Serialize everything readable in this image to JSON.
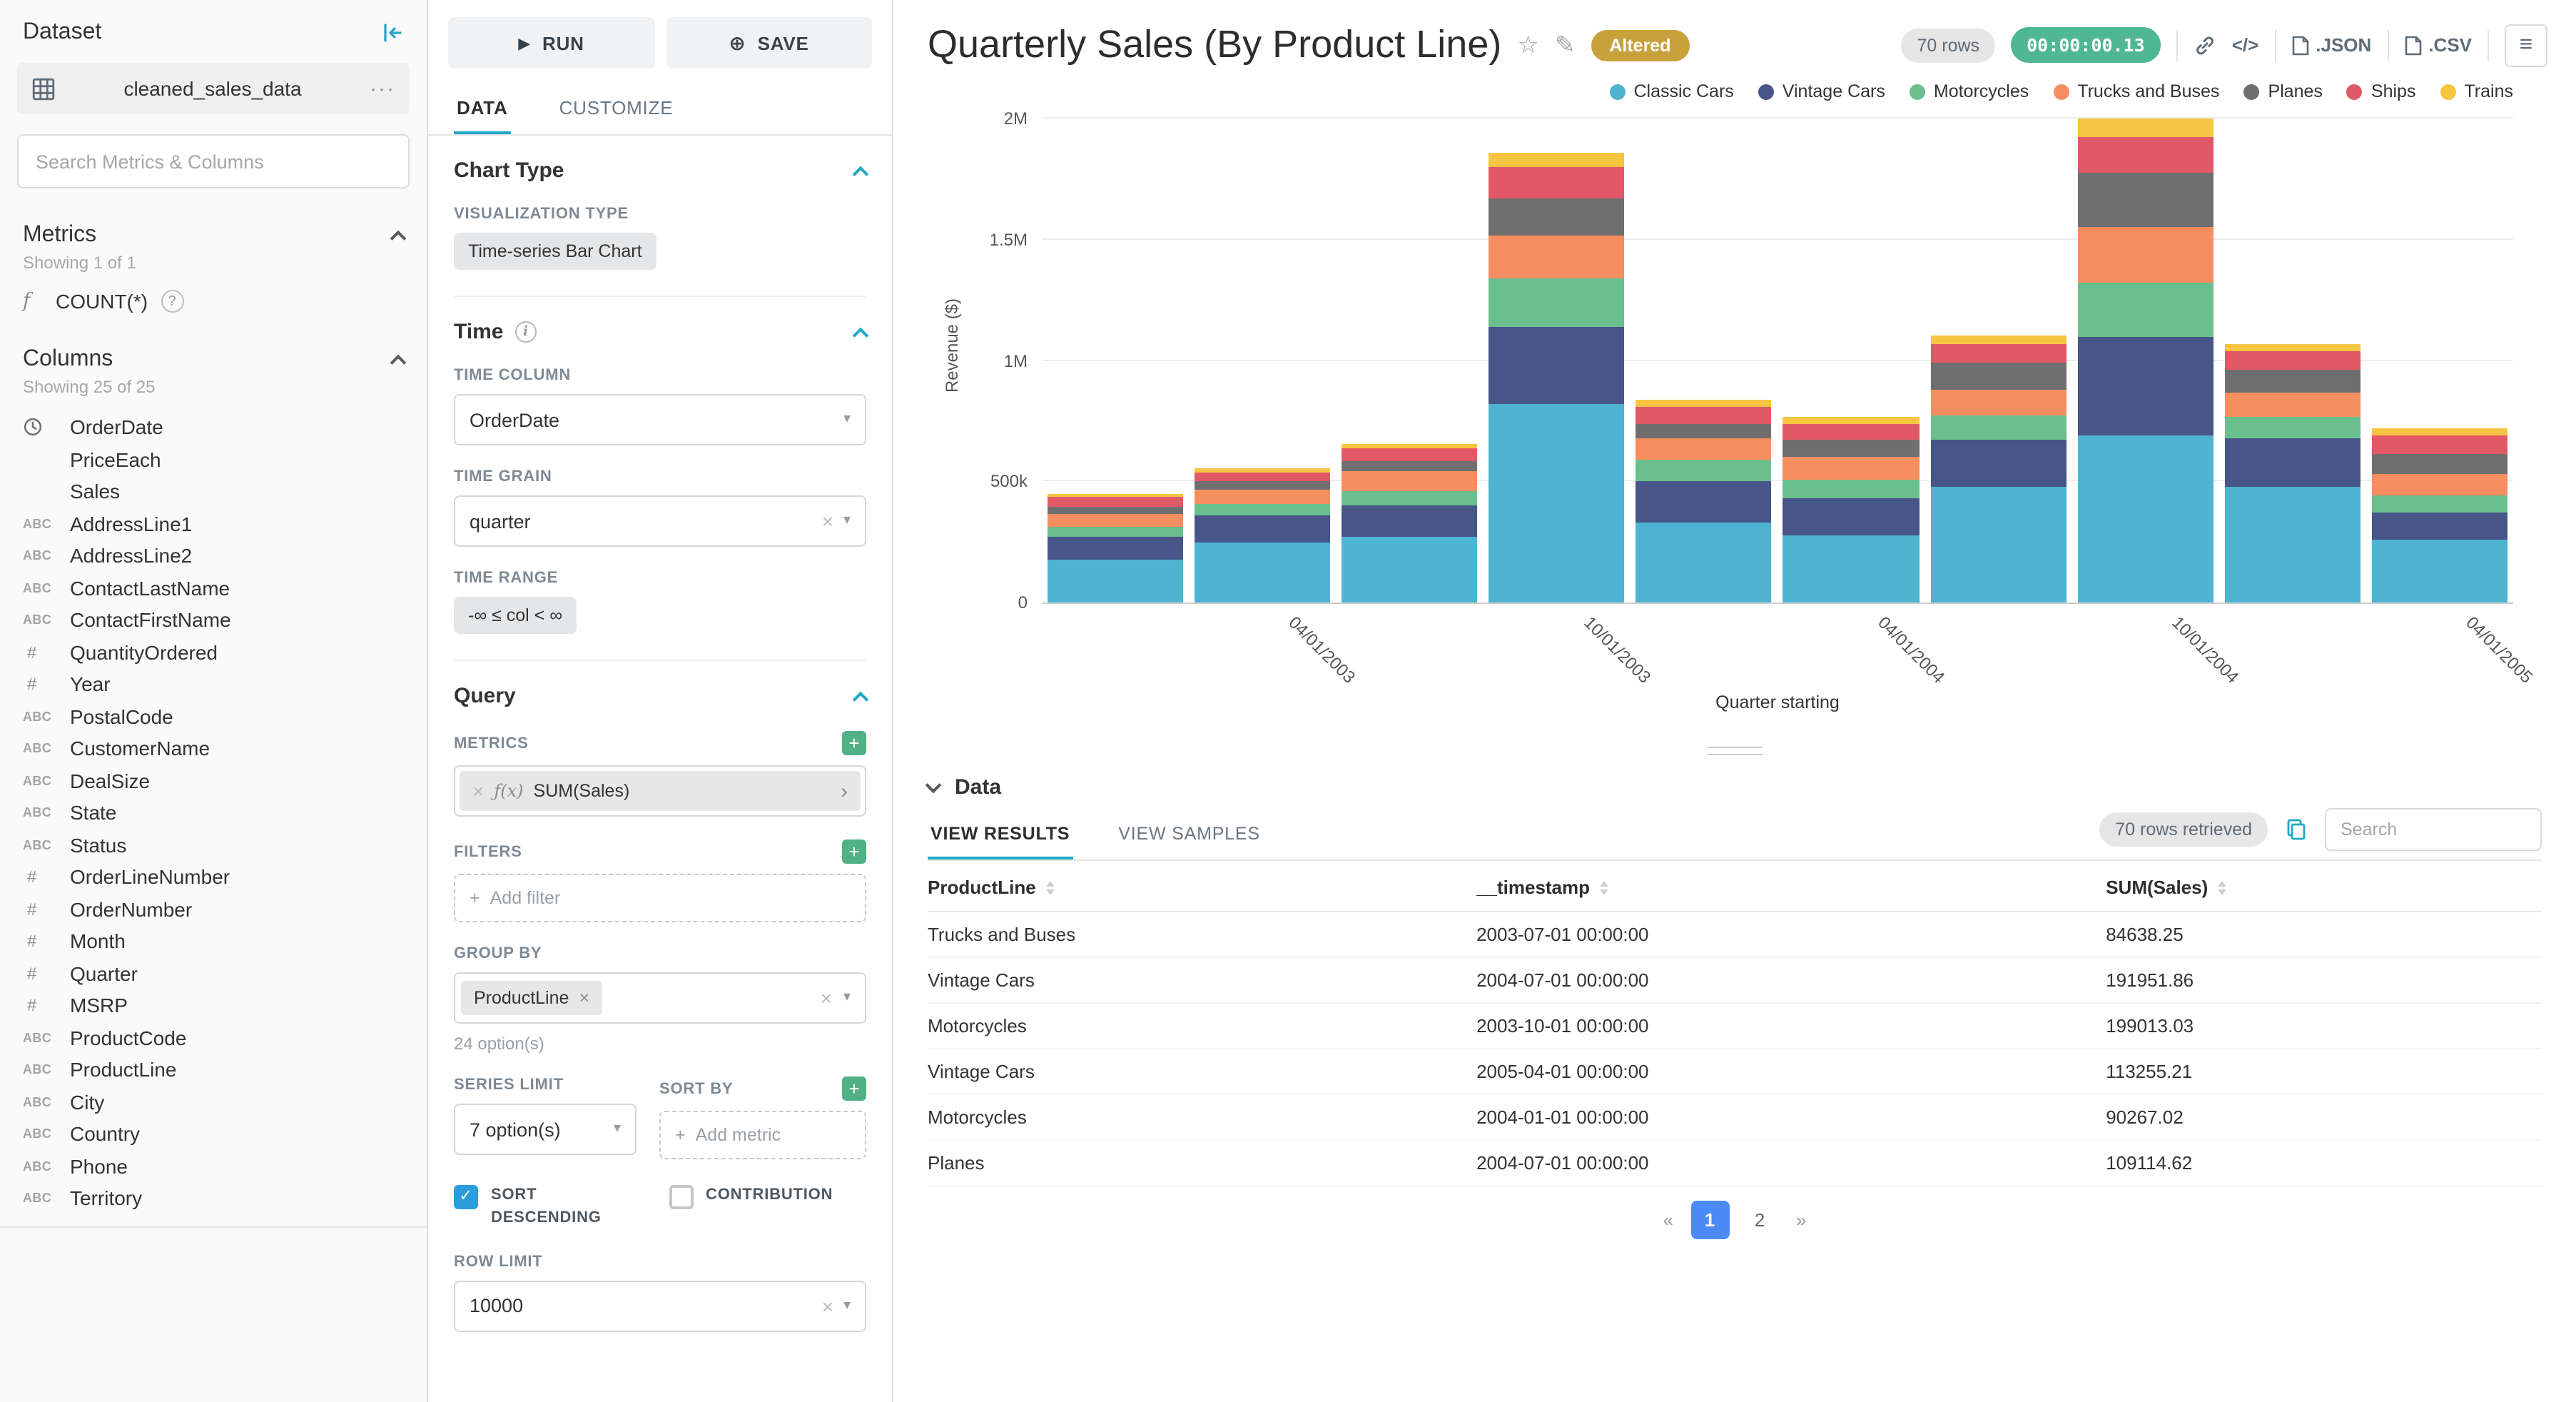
{
  "colors": {
    "primary": "#20A7C9",
    "altered_badge": "#C9A13B",
    "timer_badge": "#50B795",
    "add_button_green": "#4FB184",
    "checkbox_blue": "#2D9CDB",
    "active_page_blue": "#4C8BF5"
  },
  "icons": {
    "run": "▶",
    "save": "⊕",
    "more": "···",
    "function": "f",
    "fx": "ƒ(x)",
    "help": "?",
    "info": "i",
    "clear": "×",
    "caret": "▾",
    "arrow_right": "›",
    "plus": "+",
    "star": "☆",
    "pencil": "✎",
    "code": "</>",
    "menu": "≡",
    "check": "✓"
  },
  "dataset_panel": {
    "title": "Dataset",
    "dataset_name": "cleaned_sales_data",
    "search_placeholder": "Search Metrics & Columns",
    "metrics": {
      "title": "Metrics",
      "showing": "Showing 1 of 1",
      "items": [
        {
          "type": "function",
          "name": "COUNT(*)"
        }
      ]
    },
    "columns": {
      "title": "Columns",
      "showing": "Showing 25 of 25",
      "type_glyphs": {
        "text": "ABC",
        "num": "#",
        "none": ""
      },
      "items": [
        {
          "type": "time",
          "name": "OrderDate"
        },
        {
          "type": "none",
          "name": "PriceEach"
        },
        {
          "type": "none",
          "name": "Sales"
        },
        {
          "type": "text",
          "name": "AddressLine1"
        },
        {
          "type": "text",
          "name": "AddressLine2"
        },
        {
          "type": "text",
          "name": "ContactLastName"
        },
        {
          "type": "text",
          "name": "ContactFirstName"
        },
        {
          "type": "num",
          "name": "QuantityOrdered"
        },
        {
          "type": "num",
          "name": "Year"
        },
        {
          "type": "text",
          "name": "PostalCode"
        },
        {
          "type": "text",
          "name": "CustomerName"
        },
        {
          "type": "text",
          "name": "DealSize"
        },
        {
          "type": "text",
          "name": "State"
        },
        {
          "type": "text",
          "name": "Status"
        },
        {
          "type": "num",
          "name": "OrderLineNumber"
        },
        {
          "type": "num",
          "name": "OrderNumber"
        },
        {
          "type": "num",
          "name": "Month"
        },
        {
          "type": "num",
          "name": "Quarter"
        },
        {
          "type": "num",
          "name": "MSRP"
        },
        {
          "type": "text",
          "name": "ProductCode"
        },
        {
          "type": "text",
          "name": "ProductLine"
        },
        {
          "type": "text",
          "name": "City"
        },
        {
          "type": "text",
          "name": "Country"
        },
        {
          "type": "text",
          "name": "Phone"
        },
        {
          "type": "text",
          "name": "Territory"
        }
      ]
    }
  },
  "control_panel": {
    "run_label": "RUN",
    "save_label": "SAVE",
    "tabs": [
      "DATA",
      "CUSTOMIZE"
    ],
    "chart_type": {
      "section": "Chart Type",
      "viz_type_label": "VISUALIZATION TYPE",
      "viz_type": "Time-series Bar Chart"
    },
    "time": {
      "section": "Time",
      "time_column_label": "TIME COLUMN",
      "time_column": "OrderDate",
      "time_grain_label": "TIME GRAIN",
      "time_grain": "quarter",
      "time_range_label": "TIME RANGE",
      "time_range": "-∞ ≤ col < ∞"
    },
    "query": {
      "section": "Query",
      "metrics_label": "METRICS",
      "metric": "SUM(Sales)",
      "filters_label": "FILTERS",
      "add_filter": "Add filter",
      "group_by_label": "GROUP BY",
      "group_by_value": "ProductLine",
      "group_by_options": "24 option(s)",
      "series_limit_label": "SERIES LIMIT",
      "series_limit": "7 option(s)",
      "sort_by_label": "SORT BY",
      "add_metric": "Add metric",
      "sort_descending_label": "SORT DESCENDING",
      "contribution_label": "CONTRIBUTION",
      "row_limit_label": "ROW LIMIT",
      "row_limit": "10000"
    }
  },
  "header": {
    "title": "Quarterly Sales (By Product Line)",
    "altered_badge": "Altered",
    "rows_badge": "70 rows",
    "timer_badge": "00:00:00.13",
    "json_label": ".JSON",
    "csv_label": ".CSV"
  },
  "chart_data": {
    "type": "bar",
    "stacked": true,
    "title": "Quarterly Sales (By Product Line)",
    "xlabel": "Quarter starting",
    "ylabel": "Revenue ($)",
    "ylim": [
      0,
      2000000
    ],
    "yticks": [
      0,
      500000,
      1000000,
      1500000,
      2000000
    ],
    "ytick_labels": [
      "0",
      "500k",
      "1M",
      "1.5M",
      "2M"
    ],
    "grid": true,
    "legend_position": "top-right",
    "categories": [
      "2003-01-01",
      "2003-04-01",
      "2003-07-01",
      "2003-10-01",
      "2004-01-01",
      "2004-04-01",
      "2004-07-01",
      "2004-10-01",
      "2005-01-01",
      "2005-04-01"
    ],
    "xtick_labels": [
      "04/01/2003",
      "10/01/2003",
      "04/01/2004",
      "10/01/2004",
      "04/01/2005"
    ],
    "xtick_positions": [
      0.175,
      0.375,
      0.575,
      0.775,
      0.975
    ],
    "series": [
      {
        "name": "Classic Cars",
        "color": "#4FB3D2",
        "values": [
          180000,
          250000,
          270000,
          820000,
          330000,
          280000,
          480000,
          690000,
          480000,
          260000
        ]
      },
      {
        "name": "Vintage Cars",
        "color": "#475588",
        "values": [
          90000,
          110000,
          130000,
          320000,
          170000,
          150000,
          191951.86,
          405000,
          200000,
          113255.21
        ]
      },
      {
        "name": "Motorcycles",
        "color": "#6ABF8E",
        "values": [
          45000,
          50000,
          60000,
          199013.03,
          90267.02,
          80000,
          100000,
          225000,
          90000,
          70000
        ]
      },
      {
        "name": "Trucks and Buses",
        "color": "#F78E61",
        "values": [
          50000,
          55000,
          84638.25,
          180000,
          90000,
          90000,
          110000,
          230000,
          100000,
          90000
        ]
      },
      {
        "name": "Planes",
        "color": "#6F6F6F",
        "values": [
          30000,
          35000,
          40000,
          150000,
          60000,
          70000,
          109114.62,
          225000,
          90000,
          80000
        ]
      },
      {
        "name": "Ships",
        "color": "#E15967",
        "values": [
          40000,
          40000,
          50000,
          130000,
          70000,
          70000,
          80000,
          150000,
          80000,
          80000
        ]
      },
      {
        "name": "Trains",
        "color": "#F6C542",
        "values": [
          15000,
          15000,
          20000,
          60000,
          25000,
          25000,
          30000,
          75000,
          30000,
          25000
        ]
      }
    ]
  },
  "data_panel": {
    "title": "Data",
    "tabs": [
      "VIEW RESULTS",
      "VIEW SAMPLES"
    ],
    "rows_retrieved": "70 rows retrieved",
    "search_placeholder": "Search",
    "table": {
      "headers": [
        "ProductLine",
        "__timestamp",
        "SUM(Sales)"
      ],
      "rows": [
        [
          "Trucks and Buses",
          "2003-07-01 00:00:00",
          "84638.25"
        ],
        [
          "Vintage Cars",
          "2004-07-01 00:00:00",
          "191951.86"
        ],
        [
          "Motorcycles",
          "2003-10-01 00:00:00",
          "199013.03"
        ],
        [
          "Vintage Cars",
          "2005-04-01 00:00:00",
          "113255.21"
        ],
        [
          "Motorcycles",
          "2004-01-01 00:00:00",
          "90267.02"
        ],
        [
          "Planes",
          "2004-07-01 00:00:00",
          "109114.62"
        ]
      ]
    },
    "pagination": {
      "prev": "«",
      "pages": [
        "1",
        "2"
      ],
      "current": "1",
      "next": "»"
    }
  }
}
